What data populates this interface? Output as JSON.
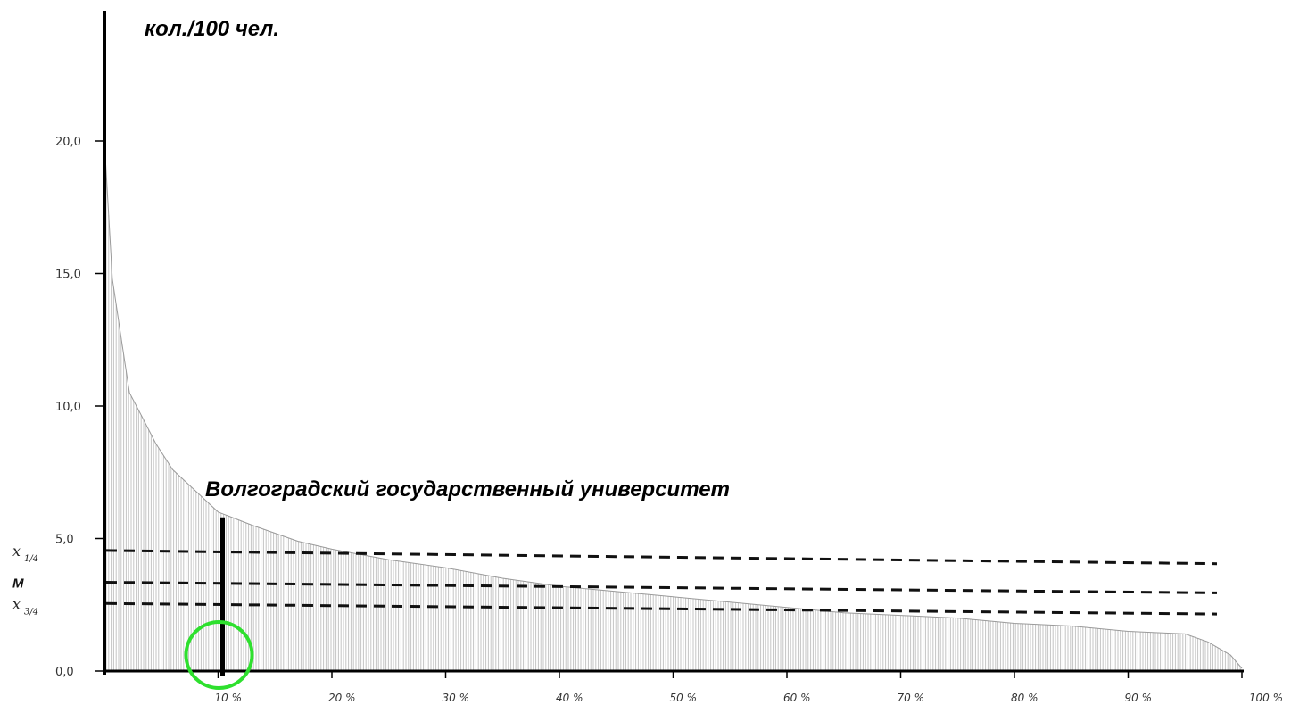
{
  "chart_data": {
    "type": "bar",
    "ylabel": "кол./100 чел.",
    "ylim": [
      0,
      25
    ],
    "yticks": [
      {
        "value": 0,
        "label": "0,0"
      },
      {
        "value": 5,
        "label": "5,0"
      },
      {
        "value": 10,
        "label": "10,0"
      },
      {
        "value": 15,
        "label": "15,0"
      },
      {
        "value": 20,
        "label": "20,0"
      }
    ],
    "xlim": [
      0,
      100
    ],
    "xticks": [
      {
        "value": 10,
        "label": "10 %"
      },
      {
        "value": 20,
        "label": "20 %"
      },
      {
        "value": 30,
        "label": "30 %"
      },
      {
        "value": 40,
        "label": "40 %"
      },
      {
        "value": 50,
        "label": "50 %"
      },
      {
        "value": 60,
        "label": "60 %"
      },
      {
        "value": 70,
        "label": "70 %"
      },
      {
        "value": 80,
        "label": "80 %"
      },
      {
        "value": 90,
        "label": "90 %"
      },
      {
        "value": 100,
        "label": "100 %"
      }
    ],
    "distribution_curve": [
      [
        0,
        20.0
      ],
      [
        0.7,
        14.8
      ],
      [
        1.5,
        12.5
      ],
      [
        2.2,
        10.5
      ],
      [
        3.3,
        9.6
      ],
      [
        4.5,
        8.6
      ],
      [
        6,
        7.6
      ],
      [
        8,
        6.8
      ],
      [
        10,
        6.0
      ],
      [
        13,
        5.5
      ],
      [
        17,
        4.9
      ],
      [
        20,
        4.6
      ],
      [
        25,
        4.2
      ],
      [
        30,
        3.9
      ],
      [
        35,
        3.5
      ],
      [
        40,
        3.2
      ],
      [
        45,
        3.0
      ],
      [
        50,
        2.8
      ],
      [
        55,
        2.6
      ],
      [
        60,
        2.4
      ],
      [
        65,
        2.2
      ],
      [
        70,
        2.1
      ],
      [
        75,
        2.0
      ],
      [
        80,
        1.8
      ],
      [
        85,
        1.7
      ],
      [
        90,
        1.5
      ],
      [
        95,
        1.4
      ],
      [
        97,
        1.1
      ],
      [
        99,
        0.6
      ],
      [
        100,
        0.1
      ]
    ],
    "reference_lines": [
      {
        "label_main": "x",
        "label_sub": "1/4",
        "y_start": 4.55,
        "y_end": 4.05
      },
      {
        "label_main": "M",
        "label_sub": "",
        "y_start": 3.35,
        "y_end": 2.95
      },
      {
        "label_main": "x",
        "label_sub": "3/4",
        "y_start": 2.55,
        "y_end": 2.15
      }
    ],
    "highlight": {
      "label": "Волгоградский государственный университет",
      "x": 10,
      "value": 5.8
    },
    "marker_circle_x": 10,
    "colors": {
      "axis": "#000000",
      "bars": "#c4c4c4",
      "ref_lines": "#111111",
      "circle": "#2ee02e",
      "highlight_bar": "#000000"
    }
  }
}
